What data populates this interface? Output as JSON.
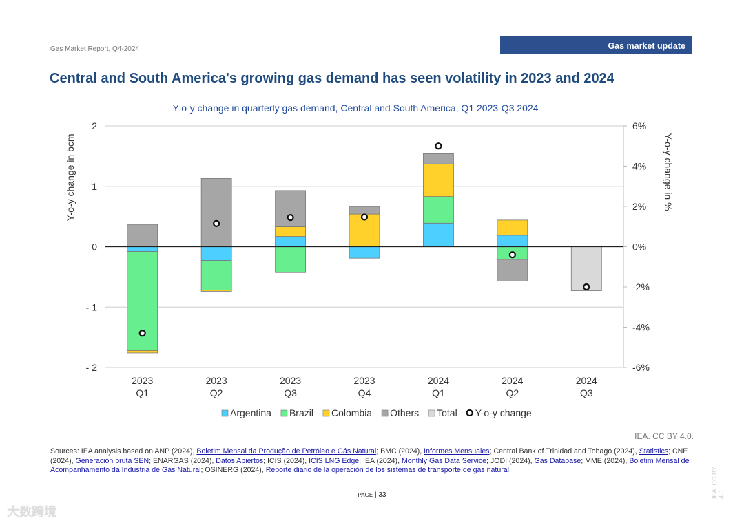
{
  "header": {
    "report": "Gas Market Report, Q4-2024",
    "section": "Gas market update"
  },
  "title": "Central and South America's growing gas demand has seen volatility in 2023 and 2024",
  "chart_data": {
    "type": "bar",
    "stacked": true,
    "title": "Y-o-y change in quarterly gas demand, Central and South America, Q1 2023-Q3 2024",
    "ylabel": "Y-o-y change in bcm",
    "y2label": "Y-o-y change in %",
    "ylim": [
      -2,
      2
    ],
    "y2lim": [
      -6,
      6
    ],
    "yticks": [
      "2",
      "1",
      "0",
      "- 1",
      "- 2"
    ],
    "y2ticks": [
      "6%",
      "4%",
      "2%",
      "0%",
      "-2%",
      "-4%",
      "-6%"
    ],
    "categories": [
      [
        "2023",
        "Q1"
      ],
      [
        "2023",
        "Q2"
      ],
      [
        "2023",
        "Q3"
      ],
      [
        "2023",
        "Q4"
      ],
      [
        "2024",
        "Q1"
      ],
      [
        "2024",
        "Q2"
      ],
      [
        "2024",
        "Q3"
      ]
    ],
    "series": [
      {
        "name": "Argentina",
        "color": "#4dcfff",
        "values": [
          -0.08,
          -0.23,
          0.17,
          -0.19,
          0.39,
          0.19,
          0
        ]
      },
      {
        "name": "Brazil",
        "color": "#66ee8f",
        "values": [
          -1.64,
          -0.49,
          -0.43,
          0,
          0.44,
          -0.21,
          0
        ]
      },
      {
        "name": "Colombia",
        "color": "#ffd12a",
        "values": [
          -0.04,
          -0.02,
          0.16,
          0.54,
          0.54,
          0.25,
          0
        ]
      },
      {
        "name": "Others",
        "color": "#a6a6a6",
        "values": [
          0.37,
          1.13,
          0.6,
          0.12,
          0.17,
          -0.36,
          0
        ]
      },
      {
        "name": "Total",
        "color": "#d9d9d9",
        "values": [
          0,
          0,
          0,
          0,
          0,
          0,
          -0.73
        ]
      }
    ],
    "line_series": {
      "name": "Y-o-y change",
      "axis": "right",
      "values": [
        -4.3,
        1.15,
        1.45,
        1.47,
        5.0,
        -0.4,
        -2.0
      ]
    },
    "grid": true,
    "legend": "bottom"
  },
  "credit": "IEA. CC BY 4.0.",
  "sources": [
    {
      "t": "Sources: IEA analysis based on ANP (2024), "
    },
    {
      "t": "Boletim Mensal da Produção de Petróleo e Gás Natural",
      "link": true
    },
    {
      "t": "; BMC (2024), "
    },
    {
      "t": "Informes Mensuales",
      "link": true
    },
    {
      "t": "; Central Bank of Trinidad and Tobago (2024), "
    },
    {
      "t": "Statistics",
      "link": true
    },
    {
      "t": "; CNE (2024), "
    },
    {
      "t": "Generación bruta SEN",
      "link": true
    },
    {
      "t": "; ENARGAS (2024), "
    },
    {
      "t": "Datos Abiertos",
      "link": true
    },
    {
      "t": "; ICIS (2024), "
    },
    {
      "t": "ICIS LNG Edge",
      "link": true
    },
    {
      "t": "; IEA (2024), "
    },
    {
      "t": "Monthly Gas Data Service;",
      "link": true
    },
    {
      "t": " JODI (2024), "
    },
    {
      "t": "Gas Database",
      "link": true
    },
    {
      "t": "; MME (2024), "
    },
    {
      "t": "Boletim Mensal de Acompanhamento da Industria de Gás Natural",
      "link": true
    },
    {
      "t": "; OSINERG (2024), "
    },
    {
      "t": "Reporte diario de la operación de los sistemas de transporte de gas natural",
      "link": true
    },
    {
      "t": "."
    }
  ],
  "page": {
    "label": "Page",
    "number": "33"
  },
  "side_credit": "IEA. CC BY 4.0.",
  "watermark": "大数跨境"
}
